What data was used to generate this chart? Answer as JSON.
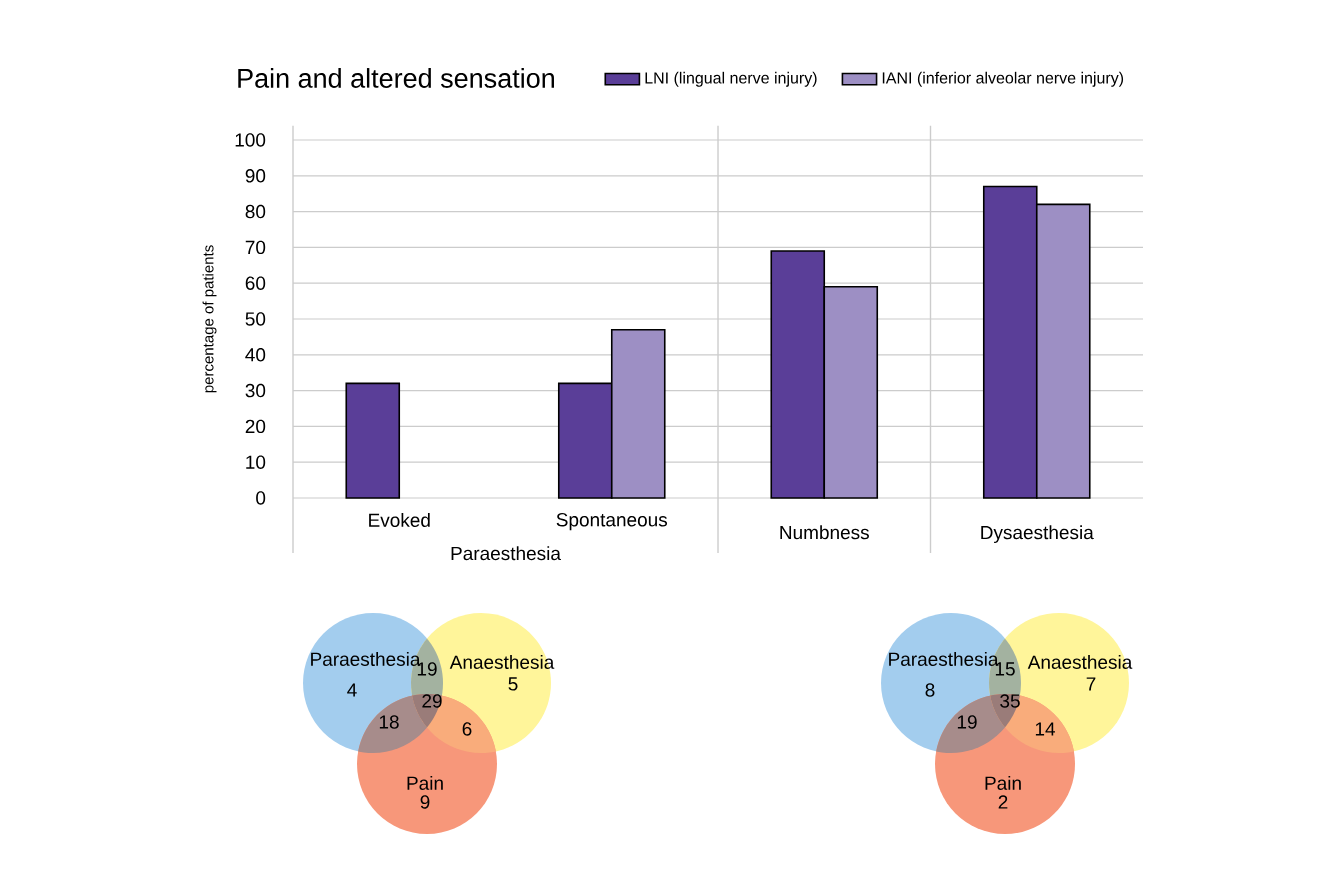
{
  "chart_data": [
    {
      "type": "bar",
      "title": "Pain and altered sensation",
      "ylabel": "percentage of patients",
      "categories": [
        "Evoked",
        "Spontaneous",
        "Numbness",
        "Dysaesthesia"
      ],
      "series": [
        {
          "name": "LNI (lingual nerve injury)",
          "color": "#5a3e98",
          "values": [
            32,
            32,
            69,
            87
          ]
        },
        {
          "name": "IANI (inferior alveolar nerve injury)",
          "color": "#9d8fc4",
          "values": [
            null,
            47,
            59,
            82
          ]
        }
      ],
      "annotations": [
        "Paraesthesia"
      ],
      "ylim": [
        0,
        100
      ],
      "yticks": [
        0,
        10,
        20,
        30,
        40,
        50,
        60,
        70,
        80,
        90,
        100
      ],
      "grid": "y",
      "legend": "top right"
    },
    {
      "type": "other",
      "categories": [
        "Paraesthesia",
        "Anaesthesia",
        "Pain"
      ],
      "annotations": [
        "4",
        "5",
        "9",
        "19",
        "18",
        "6",
        "29"
      ],
      "colors": [
        "#a3cdee",
        "#fff59a",
        "#f7977a"
      ]
    },
    {
      "type": "other",
      "categories": [
        "Paraesthesia",
        "Anaesthesia",
        "Pain"
      ],
      "annotations": [
        "8",
        "7",
        "2",
        "15",
        "19",
        "14",
        "35"
      ],
      "colors": [
        "#a3cdee",
        "#fff59a",
        "#f7977a"
      ]
    }
  ]
}
